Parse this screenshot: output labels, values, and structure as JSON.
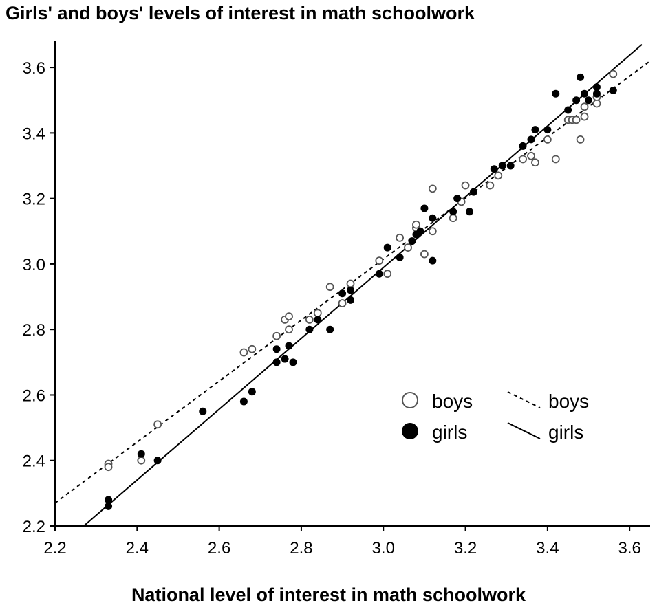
{
  "chart_data": {
    "type": "scatter",
    "title": "Girls' and boys' levels of interest in math schoolwork",
    "xlabel": "National level of interest in math schoolwork",
    "ylabel": "",
    "xlim": [
      2.2,
      3.65
    ],
    "ylim": [
      2.2,
      3.68
    ],
    "xticks": [
      "2.2",
      "2.4",
      "2.6",
      "2.8",
      "3.0",
      "3.2",
      "3.4",
      "3.6"
    ],
    "yticks": [
      "2.2",
      "2.4",
      "2.6",
      "2.8",
      "3.0",
      "3.2",
      "3.4",
      "3.6"
    ],
    "grid": false,
    "legend_position": "right-middle",
    "legend": {
      "boys_marker": "boys",
      "girls_marker": "girls",
      "boys_line": "boys",
      "girls_line": "girls"
    },
    "series": [
      {
        "name": "boys",
        "marker": "open-circle",
        "color": "#555555",
        "points": [
          [
            2.33,
            2.39
          ],
          [
            2.33,
            2.38
          ],
          [
            2.41,
            2.4
          ],
          [
            2.45,
            2.51
          ],
          [
            2.66,
            2.73
          ],
          [
            2.68,
            2.74
          ],
          [
            2.74,
            2.78
          ],
          [
            2.76,
            2.83
          ],
          [
            2.77,
            2.84
          ],
          [
            2.77,
            2.8
          ],
          [
            2.82,
            2.83
          ],
          [
            2.84,
            2.85
          ],
          [
            2.87,
            2.93
          ],
          [
            2.9,
            2.88
          ],
          [
            2.92,
            2.94
          ],
          [
            2.99,
            3.01
          ],
          [
            3.01,
            2.97
          ],
          [
            3.04,
            3.08
          ],
          [
            3.06,
            3.05
          ],
          [
            3.08,
            3.11
          ],
          [
            3.08,
            3.12
          ],
          [
            3.1,
            3.03
          ],
          [
            3.12,
            3.23
          ],
          [
            3.12,
            3.1
          ],
          [
            3.17,
            3.14
          ],
          [
            3.19,
            3.19
          ],
          [
            3.2,
            3.24
          ],
          [
            3.26,
            3.24
          ],
          [
            3.28,
            3.27
          ],
          [
            3.34,
            3.32
          ],
          [
            3.36,
            3.33
          ],
          [
            3.37,
            3.31
          ],
          [
            3.4,
            3.38
          ],
          [
            3.42,
            3.32
          ],
          [
            3.45,
            3.44
          ],
          [
            3.46,
            3.44
          ],
          [
            3.47,
            3.44
          ],
          [
            3.48,
            3.38
          ],
          [
            3.49,
            3.45
          ],
          [
            3.49,
            3.48
          ],
          [
            3.52,
            3.49
          ],
          [
            3.52,
            3.51
          ],
          [
            3.56,
            3.58
          ]
        ]
      },
      {
        "name": "girls",
        "marker": "filled-circle",
        "color": "#000000",
        "points": [
          [
            2.33,
            2.28
          ],
          [
            2.33,
            2.26
          ],
          [
            2.41,
            2.42
          ],
          [
            2.45,
            2.4
          ],
          [
            2.56,
            2.55
          ],
          [
            2.66,
            2.58
          ],
          [
            2.68,
            2.61
          ],
          [
            2.74,
            2.74
          ],
          [
            2.74,
            2.7
          ],
          [
            2.76,
            2.71
          ],
          [
            2.77,
            2.75
          ],
          [
            2.78,
            2.7
          ],
          [
            2.82,
            2.8
          ],
          [
            2.84,
            2.83
          ],
          [
            2.87,
            2.8
          ],
          [
            2.9,
            2.91
          ],
          [
            2.92,
            2.92
          ],
          [
            2.92,
            2.89
          ],
          [
            2.99,
            2.97
          ],
          [
            3.01,
            3.05
          ],
          [
            3.04,
            3.02
          ],
          [
            3.07,
            3.07
          ],
          [
            3.08,
            3.09
          ],
          [
            3.09,
            3.1
          ],
          [
            3.1,
            3.17
          ],
          [
            3.12,
            3.14
          ],
          [
            3.12,
            3.01
          ],
          [
            3.17,
            3.16
          ],
          [
            3.18,
            3.2
          ],
          [
            3.21,
            3.16
          ],
          [
            3.22,
            3.22
          ],
          [
            3.27,
            3.29
          ],
          [
            3.29,
            3.3
          ],
          [
            3.31,
            3.3
          ],
          [
            3.34,
            3.36
          ],
          [
            3.36,
            3.38
          ],
          [
            3.37,
            3.41
          ],
          [
            3.4,
            3.41
          ],
          [
            3.42,
            3.52
          ],
          [
            3.45,
            3.47
          ],
          [
            3.47,
            3.5
          ],
          [
            3.48,
            3.57
          ],
          [
            3.49,
            3.52
          ],
          [
            3.5,
            3.5
          ],
          [
            3.52,
            3.54
          ],
          [
            3.52,
            3.52
          ],
          [
            3.56,
            3.53
          ]
        ]
      }
    ],
    "fit_lines": [
      {
        "name": "boys",
        "style": "dashed",
        "x": [
          2.2,
          3.65
        ],
        "y": [
          2.27,
          3.62
        ]
      },
      {
        "name": "girls",
        "style": "solid",
        "x": [
          2.27,
          3.63
        ],
        "y": [
          2.2,
          3.67
        ]
      }
    ]
  }
}
